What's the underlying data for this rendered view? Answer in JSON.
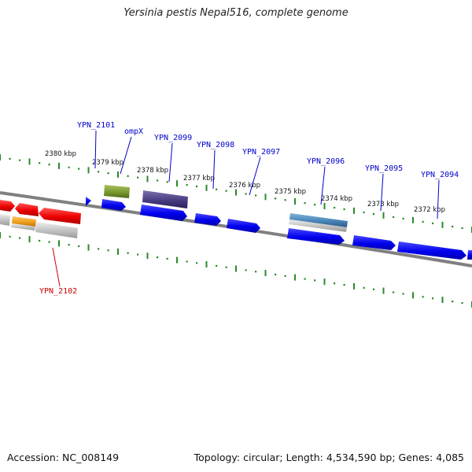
{
  "title": "Yersinia pestis Nepal516, complete genome",
  "footer": {
    "accession": "Accession: NC_008149",
    "summary": "Topology: circular; Length: 4,534,590 bp; Genes: 4,085"
  },
  "colors": {
    "backbone": "#7a7a7a",
    "ruler": "#2a8a2a",
    "forward_label": "#0000cc",
    "reverse_label": "#cc0000"
  },
  "kbp_labels": [
    "2380 kbp",
    "2379 kbp",
    "2378 kbp",
    "2377 kbp",
    "2376 kbp",
    "2375 kbp",
    "2374 kbp",
    "2373 kbp",
    "2372 kbp"
  ],
  "gene_labels": [
    {
      "name": "YPN_2101",
      "strand": "forward"
    },
    {
      "name": "ompX",
      "strand": "forward"
    },
    {
      "name": "YPN_2099",
      "strand": "forward"
    },
    {
      "name": "YPN_2098",
      "strand": "forward"
    },
    {
      "name": "YPN_2097",
      "strand": "forward"
    },
    {
      "name": "YPN_2096",
      "strand": "forward"
    },
    {
      "name": "YPN_2095",
      "strand": "forward"
    },
    {
      "name": "YPN_2094",
      "strand": "forward"
    },
    {
      "name": "YPN_2102",
      "strand": "reverse"
    }
  ]
}
